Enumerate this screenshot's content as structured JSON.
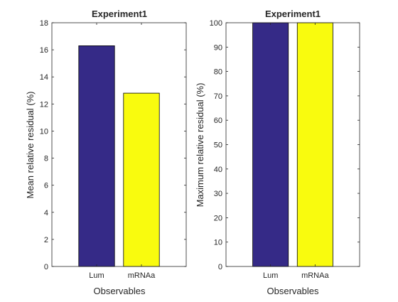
{
  "chart_data": [
    {
      "type": "bar",
      "title": "Experiment1",
      "xlabel": "Observables",
      "ylabel": "Mean relative residual (%)",
      "categories": [
        "Lum",
        "mRNAa"
      ],
      "values": [
        16.3,
        12.8
      ],
      "colors": [
        "#352a87",
        "#f9fb0e"
      ],
      "ylim": [
        0,
        18
      ],
      "yticks": [
        0,
        2,
        4,
        6,
        8,
        10,
        12,
        14,
        16,
        18
      ],
      "grid": false,
      "legend": "none"
    },
    {
      "type": "bar",
      "title": "Experiment1",
      "xlabel": "Observables",
      "ylabel": "Maximum relative residual (%)",
      "categories": [
        "Lum",
        "mRNAa"
      ],
      "values": [
        100,
        100
      ],
      "colors": [
        "#352a87",
        "#f9fb0e"
      ],
      "ylim": [
        0,
        100
      ],
      "yticks": [
        0,
        10,
        20,
        30,
        40,
        50,
        60,
        70,
        80,
        90,
        100
      ],
      "grid": false,
      "legend": "none"
    }
  ]
}
